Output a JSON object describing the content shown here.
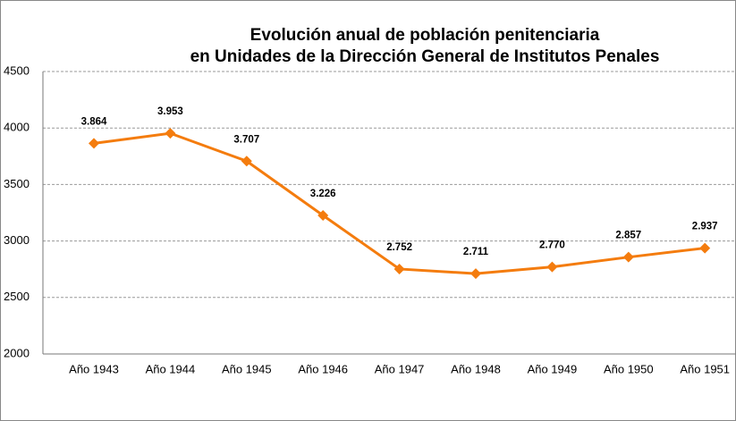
{
  "chart_data": {
    "type": "line",
    "title": [
      "Evolución anual de población penitenciaria",
      "en Unidades de la Dirección General de Institutos Penales"
    ],
    "categories": [
      "Año 1943",
      "Año 1944",
      "Año 1945",
      "Año 1946",
      "Año 1947",
      "Año 1948",
      "Año 1949",
      "Año 1950",
      "Año 1951"
    ],
    "series": [
      {
        "color": "#f47c0e",
        "values": [
          3864,
          3953,
          3707,
          3226,
          2752,
          2711,
          2770,
          2857,
          2937
        ],
        "value_labels": [
          "3.864",
          "3.953",
          "3.707",
          "3.226",
          "2.752",
          "2.711",
          "2.770",
          "2.857",
          "2.937"
        ]
      }
    ],
    "ylim": [
      2000,
      4500
    ],
    "yticks": [
      2000,
      2500,
      3000,
      3500,
      4000,
      4500
    ],
    "grid": true
  }
}
